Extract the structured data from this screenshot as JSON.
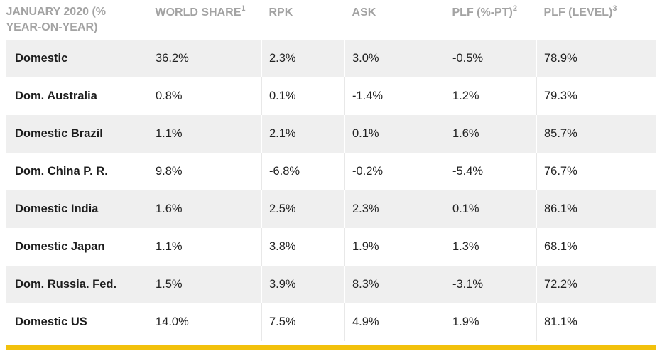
{
  "table": {
    "columns": [
      {
        "label": "JANUARY 2020 (% YEAR-ON-YEAR)",
        "sup": ""
      },
      {
        "label": "WORLD SHARE",
        "sup": "1"
      },
      {
        "label": "RPK",
        "sup": ""
      },
      {
        "label": "ASK",
        "sup": ""
      },
      {
        "label": "PLF (%-PT)",
        "sup": "2"
      },
      {
        "label": "PLF (LEVEL)",
        "sup": "3"
      }
    ],
    "rows": [
      {
        "market": "Domestic",
        "world_share": "36.2%",
        "rpk": "2.3%",
        "ask": "3.0%",
        "plf_pt": "-0.5%",
        "plf_level": "78.9%"
      },
      {
        "market": "Dom. Australia",
        "world_share": "0.8%",
        "rpk": "0.1%",
        "ask": "-1.4%",
        "plf_pt": "1.2%",
        "plf_level": "79.3%"
      },
      {
        "market": "Domestic Brazil",
        "world_share": "1.1%",
        "rpk": "2.1%",
        "ask": "0.1%",
        "plf_pt": "1.6%",
        "plf_level": "85.7%"
      },
      {
        "market": "Dom. China P. R.",
        "world_share": "9.8%",
        "rpk": "-6.8%",
        "ask": "-0.2%",
        "plf_pt": "-5.4%",
        "plf_level": "76.7%"
      },
      {
        "market": "Domestic India",
        "world_share": "1.6%",
        "rpk": "2.5%",
        "ask": "2.3%",
        "plf_pt": "0.1%",
        "plf_level": "86.1%"
      },
      {
        "market": "Domestic Japan",
        "world_share": "1.1%",
        "rpk": "3.8%",
        "ask": "1.9%",
        "plf_pt": "1.3%",
        "plf_level": "68.1%"
      },
      {
        "market": "Dom. Russia. Fed.",
        "world_share": "1.5%",
        "rpk": "3.9%",
        "ask": "8.3%",
        "plf_pt": "-3.1%",
        "plf_level": "72.2%"
      },
      {
        "market": "Domestic US",
        "world_share": "14.0%",
        "rpk": "7.5%",
        "ask": "4.9%",
        "plf_pt": "1.9%",
        "plf_level": "81.1%"
      }
    ]
  },
  "colors": {
    "header_text": "#a3a3a3",
    "shaded_row": "#efefef",
    "body_text": "#222222",
    "accent": "#f2c10c"
  }
}
